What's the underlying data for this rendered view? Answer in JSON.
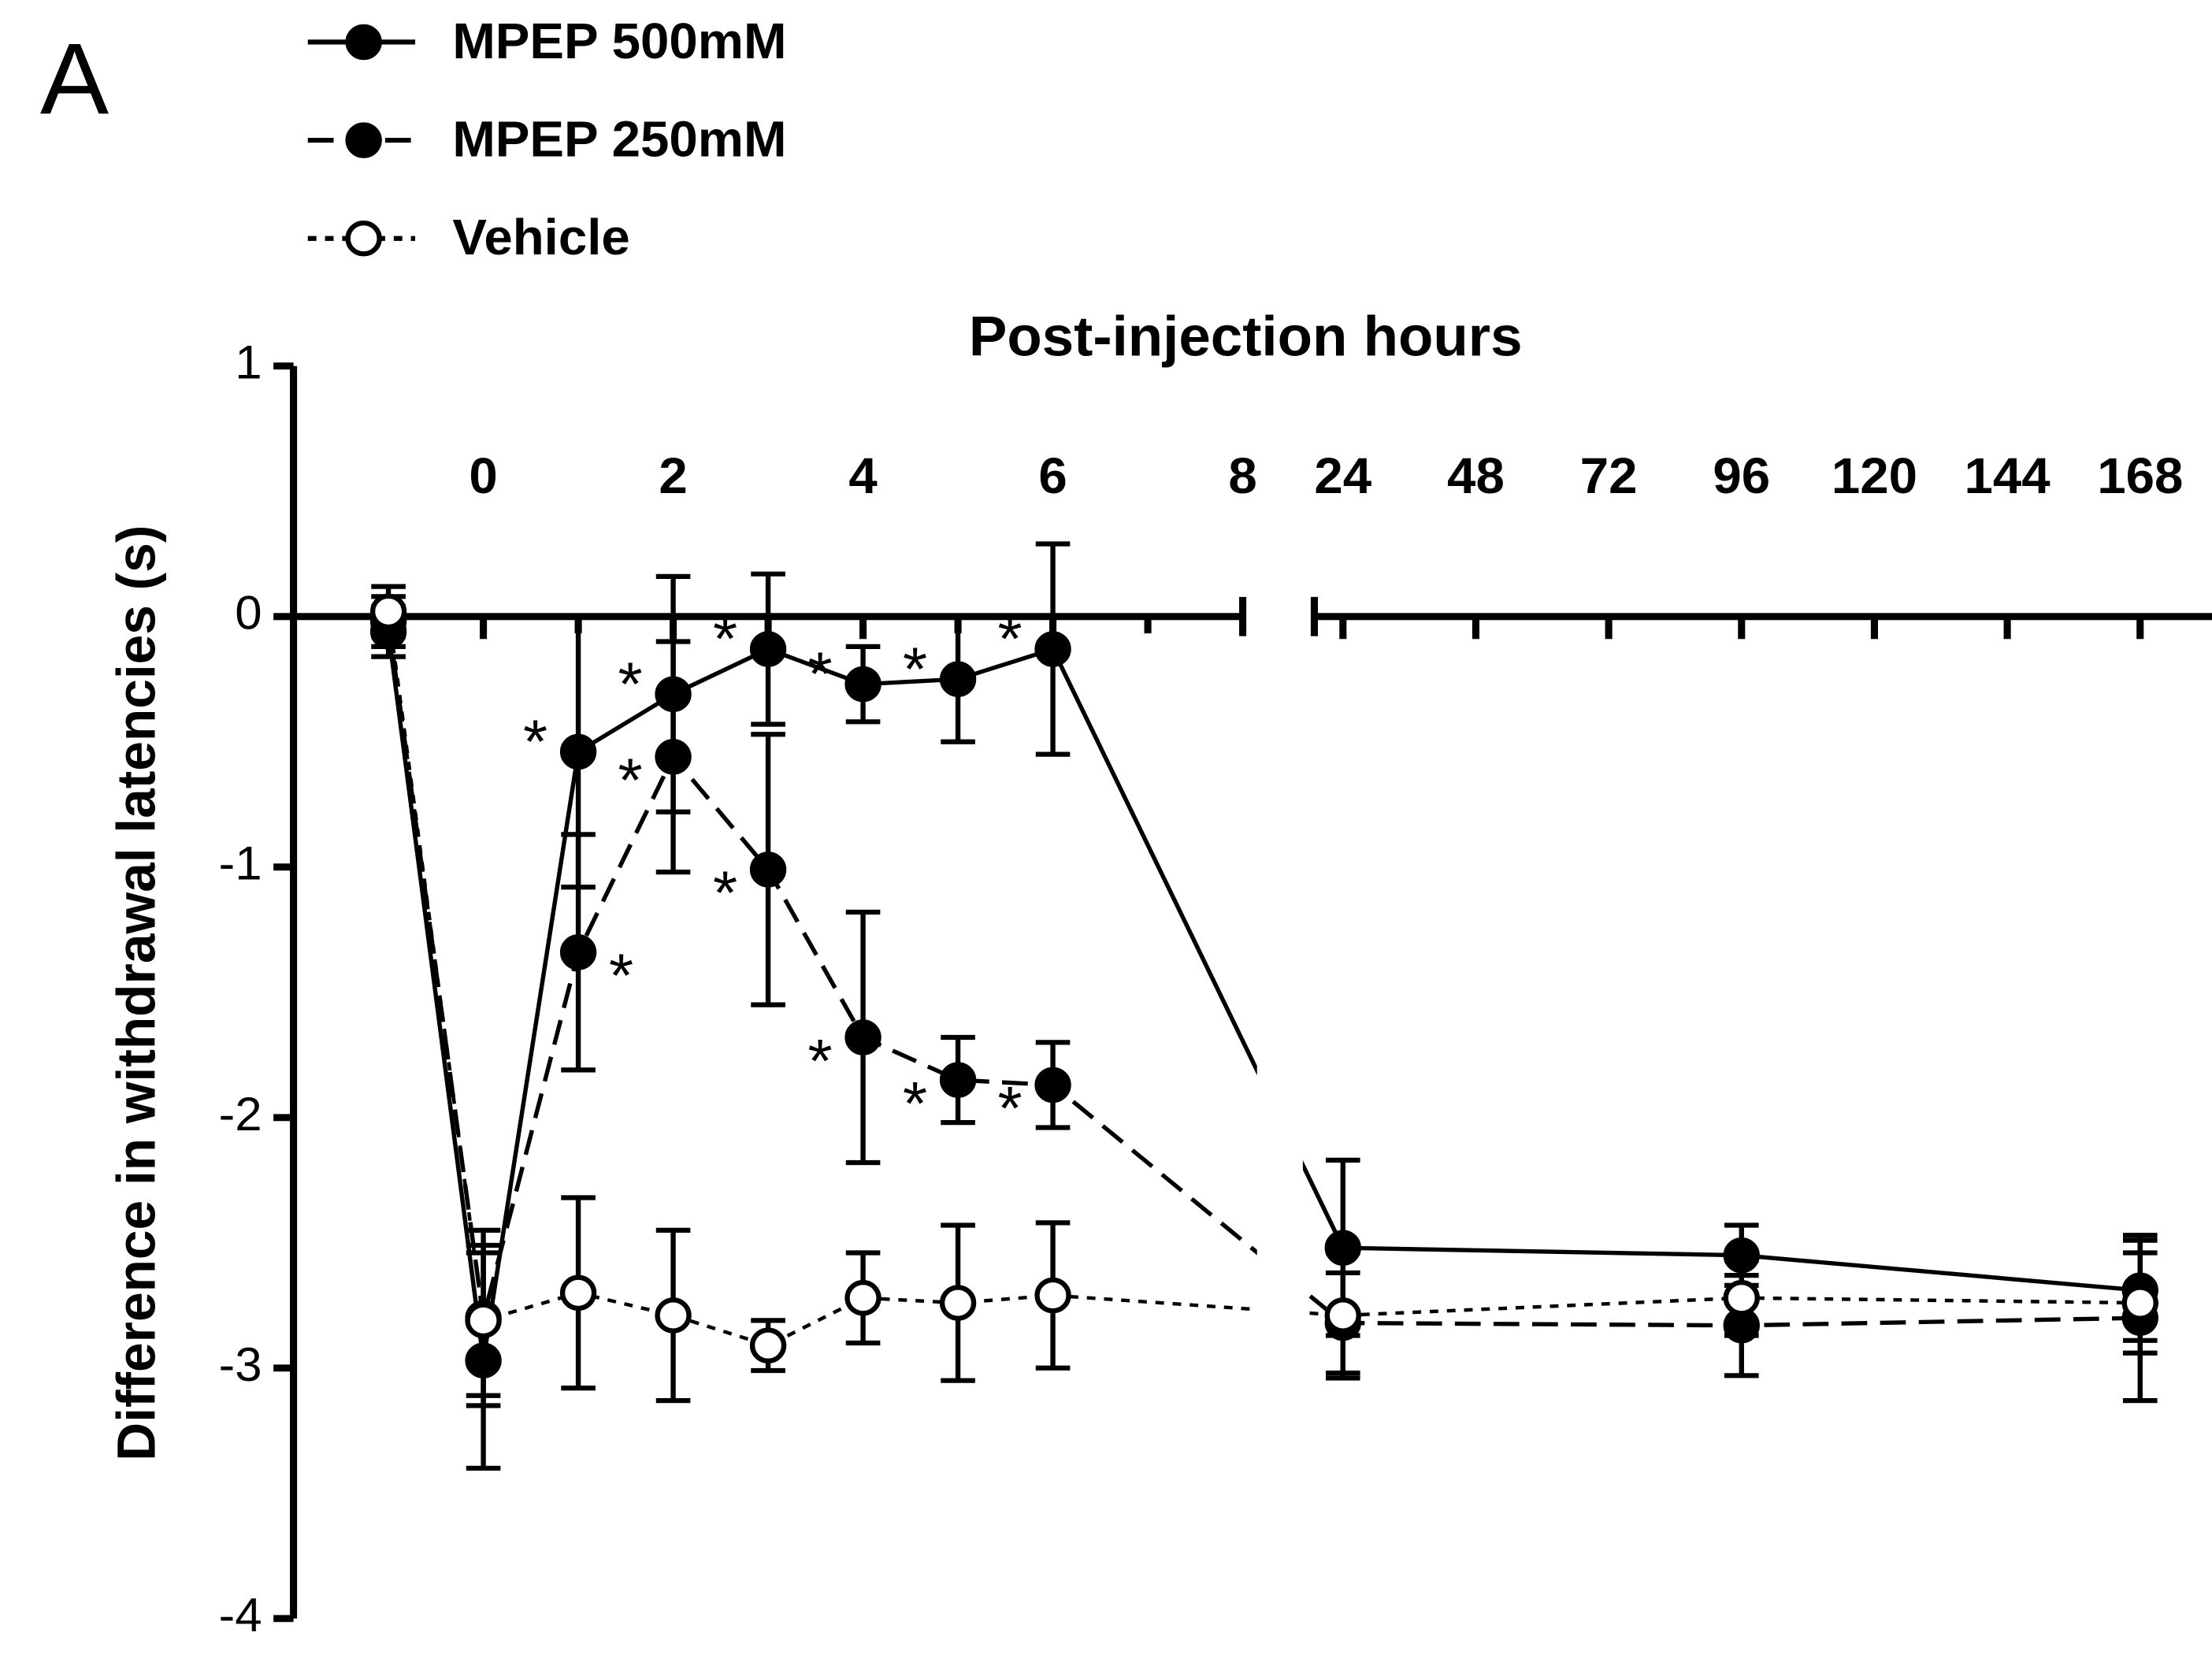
{
  "chart_data": {
    "type": "line",
    "panel_label": "A",
    "xlabel": "Post-injection hours",
    "ylabel": "Difference in withdrawal latencies (s)",
    "x": [
      -1,
      0,
      1,
      2,
      3,
      4,
      5,
      6,
      24,
      96,
      168
    ],
    "xlim": [
      -2,
      174
    ],
    "xbreak": [
      8,
      24
    ],
    "xticks": [
      0,
      2,
      4,
      6,
      8,
      24,
      48,
      72,
      96,
      120,
      144,
      168
    ],
    "xminorticks": [
      1,
      3,
      5,
      7
    ],
    "ylim": [
      -4,
      1
    ],
    "yticks": [
      -4,
      -3,
      -2,
      -1,
      0,
      1
    ],
    "legend": "top-left",
    "series": [
      {
        "name": "MPEP 500mM",
        "color": "#000000",
        "marker_fill": "#000000",
        "line_style": "solid",
        "values": [
          -0.06,
          -2.97,
          -0.54,
          -0.31,
          -0.13,
          -0.27,
          -0.25,
          -0.13,
          -2.52,
          -2.55,
          -2.69
        ],
        "errors": [
          0.1,
          0.43,
          0.54,
          0.47,
          0.3,
          0.15,
          0.25,
          0.42,
          0.35,
          0.12,
          0.2
        ],
        "markers": [
          null,
          null,
          "*",
          "*",
          "*",
          "*",
          "*",
          "*",
          null,
          null,
          null
        ]
      },
      {
        "name": "MPEP 250mM",
        "color": "#000000",
        "marker_fill": "#000000",
        "line_style": "dashed",
        "values": [
          -0.02,
          -2.8,
          -1.34,
          -0.56,
          -1.01,
          -1.68,
          -1.85,
          -1.87,
          -2.82,
          -2.83,
          -2.8
        ],
        "errors": [
          0.1,
          0.35,
          0.47,
          0.46,
          0.54,
          0.5,
          0.17,
          0.17,
          0.2,
          0.2,
          0.33
        ],
        "markers": [
          null,
          null,
          "*",
          "*",
          "*",
          "*",
          "*",
          "*",
          null,
          null,
          null
        ]
      },
      {
        "name": "Vehicle",
        "color": "#000000",
        "marker_fill": "#ffffff",
        "line_style": "dotted",
        "values": [
          0.02,
          -2.81,
          -2.7,
          -2.79,
          -2.91,
          -2.72,
          -2.74,
          -2.71,
          -2.79,
          -2.72,
          -2.74
        ],
        "errors": [
          0.1,
          0.3,
          0.38,
          0.34,
          0.1,
          0.18,
          0.31,
          0.29,
          0.25,
          0.15,
          0.2
        ],
        "markers": [
          null,
          null,
          null,
          null,
          null,
          null,
          null,
          null,
          null,
          null,
          null
        ]
      }
    ]
  }
}
